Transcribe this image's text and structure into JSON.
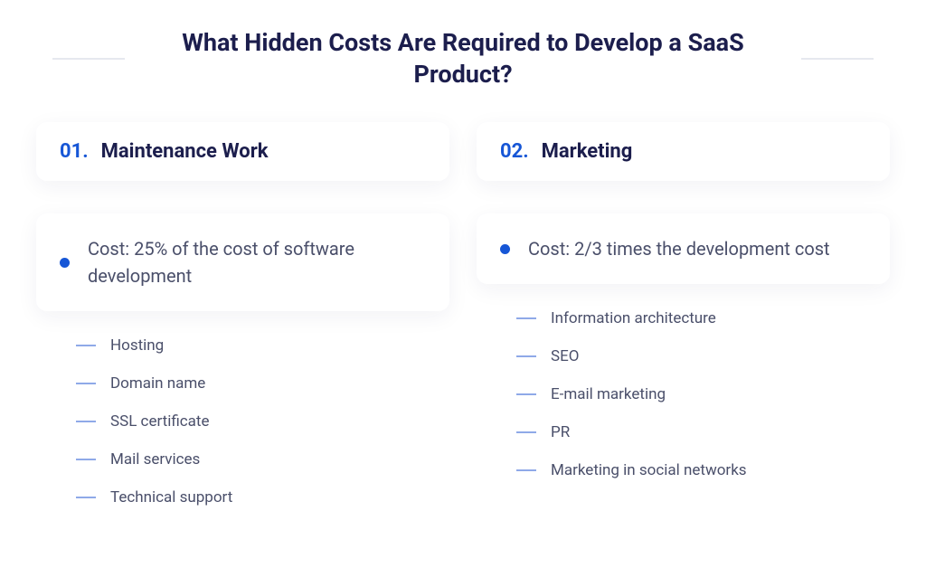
{
  "type": "infographic",
  "background_color": "#ffffff",
  "title": {
    "text": "What Hidden Costs Are Required to Develop a SaaS Product?",
    "color": "#1c1e4d",
    "fontsize": 27,
    "fontweight": 700
  },
  "divider_color": "#e6e8ef",
  "accent_color": "#1656d6",
  "dash_color": "#8fa9e8",
  "body_text_color": "#4a4f6a",
  "card": {
    "background": "#ffffff",
    "border_radius": 12,
    "shadow": "0 6px 24px rgba(28,30,77,0.06)"
  },
  "columns": [
    {
      "number": "01.",
      "heading": "Maintenance Work",
      "cost": "Cost: 25% of the cost of software development",
      "items": [
        "Hosting",
        "Domain name",
        "SSL certificate",
        "Mail services",
        "Technical support"
      ]
    },
    {
      "number": "02.",
      "heading": "Marketing",
      "cost": "Cost: 2/3 times the development cost",
      "items": [
        "Information architecture",
        "SEO",
        "E-mail marketing",
        "PR",
        "Marketing in social networks"
      ]
    }
  ]
}
